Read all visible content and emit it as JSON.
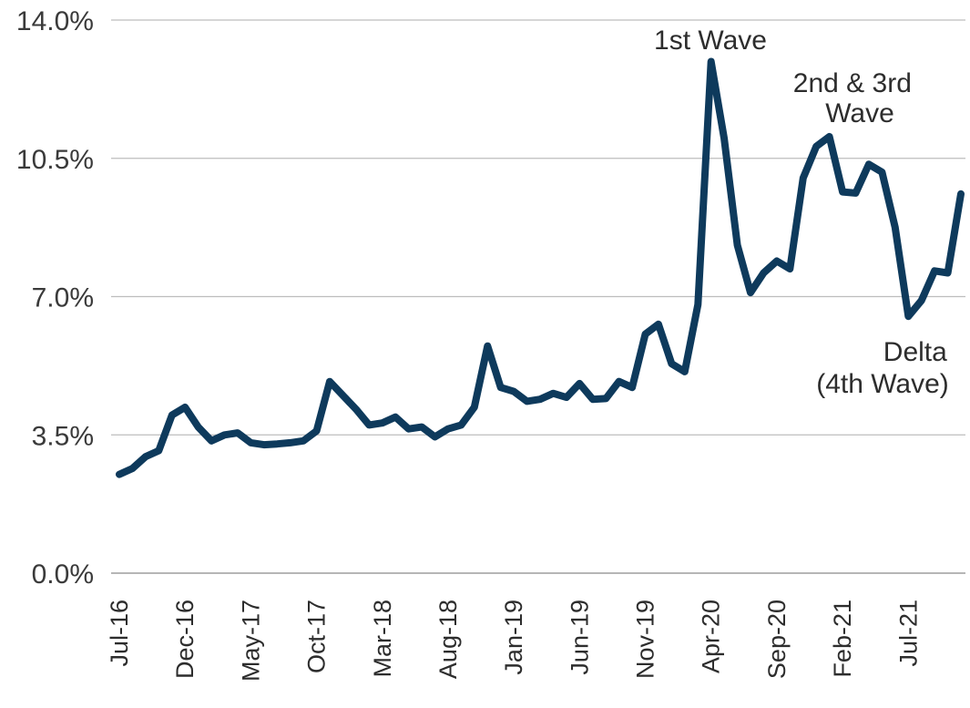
{
  "chart_data": {
    "type": "line",
    "title": "",
    "xlabel": "",
    "ylabel": "",
    "ylim": [
      0,
      14
    ],
    "y_ticks": [
      "0.0%",
      "3.5%",
      "7.0%",
      "10.5%",
      "14.0%"
    ],
    "y_tick_values": [
      0,
      3.5,
      7,
      10.5,
      14
    ],
    "x_tick_labels": [
      "Jul-16",
      "Dec-16",
      "May-17",
      "Oct-17",
      "Mar-18",
      "Aug-18",
      "Jan-19",
      "Jun-19",
      "Nov-19",
      "Apr-20",
      "Sep-20",
      "Feb-21",
      "Jul-21"
    ],
    "x_tick_indices": [
      0,
      5,
      10,
      15,
      20,
      25,
      30,
      35,
      40,
      45,
      50,
      55,
      60
    ],
    "grid": true,
    "line_color": "#0e3a5c",
    "series": [
      {
        "values": [
          2.5,
          2.65,
          2.95,
          3.1,
          4.0,
          4.2,
          3.7,
          3.35,
          3.5,
          3.55,
          3.3,
          3.25,
          3.27,
          3.3,
          3.35,
          3.6,
          4.85,
          4.5,
          4.15,
          3.75,
          3.8,
          3.95,
          3.65,
          3.7,
          3.45,
          3.65,
          3.75,
          4.2,
          5.75,
          4.7,
          4.6,
          4.35,
          4.4,
          4.55,
          4.45,
          4.8,
          4.4,
          4.42,
          4.85,
          4.7,
          6.05,
          6.3,
          5.3,
          5.1,
          6.8,
          12.95,
          11.0,
          8.3,
          7.1,
          7.6,
          7.9,
          7.7,
          10.0,
          10.8,
          11.05,
          9.65,
          9.62,
          10.35,
          10.15,
          8.75,
          6.5,
          6.9,
          7.65,
          7.6,
          9.6
        ]
      }
    ],
    "annotations": [
      {
        "text": "1st Wave"
      },
      {
        "lines": [
          "2nd & 3rd",
          "Wave"
        ]
      },
      {
        "lines": [
          "Delta",
          "(4th Wave)"
        ]
      }
    ]
  }
}
